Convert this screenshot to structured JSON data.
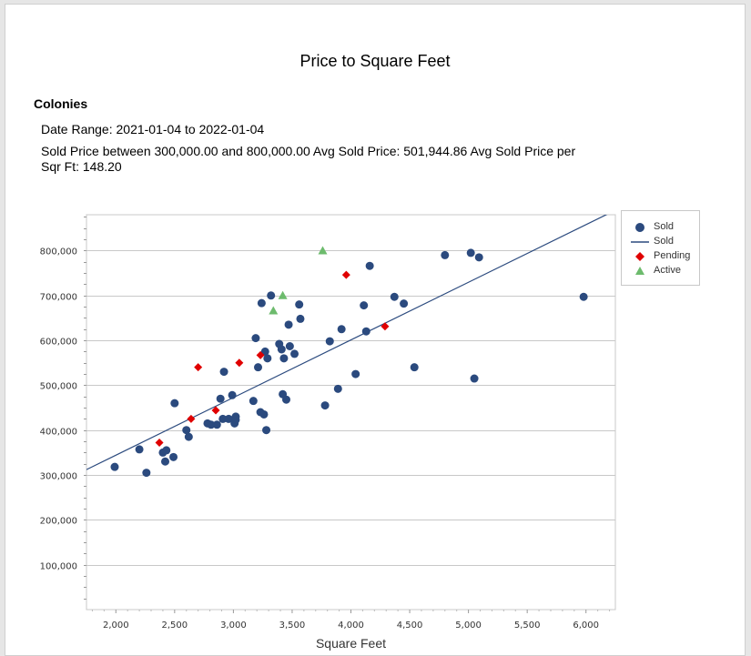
{
  "report": {
    "title": "Price to Square Feet",
    "section": "Colonies",
    "date_range": "Date Range: 2021-01-04 to 2022-01-04",
    "summary": "Sold Price between 300,000.00 and 800,000.00 Avg Sold Price: 501,944.86  Avg Sold Price per Sqr Ft: 148.20"
  },
  "colors": {
    "sold": "#2b4a7e",
    "pending": "#e00000",
    "active": "#6dbb6d",
    "trend": "#2b4a7e",
    "grid": "#c8c8c8"
  },
  "chart_data": {
    "type": "scatter",
    "title": "",
    "xlabel": "Square Feet",
    "ylabel": "",
    "xlim": [
      1750,
      6250
    ],
    "ylim": [
      0,
      880000
    ],
    "x_ticks": [
      2000,
      2500,
      3000,
      3500,
      4000,
      4500,
      5000,
      5500,
      6000
    ],
    "x_tick_labels": [
      "2,000",
      "2,500",
      "3,000",
      "3,500",
      "4,000",
      "4,500",
      "5,000",
      "5,500",
      "6,000"
    ],
    "y_ticks": [
      100000,
      200000,
      300000,
      400000,
      500000,
      600000,
      700000,
      800000
    ],
    "y_tick_labels": [
      "100,000",
      "200,000",
      "300,000",
      "400,000",
      "500,000",
      "600,000",
      "700,000",
      "800,000"
    ],
    "grid": "horizontal",
    "legend_position": "right",
    "series": [
      {
        "name": "Sold",
        "marker": "circle",
        "points": [
          [
            1990,
            318000
          ],
          [
            2200,
            357000
          ],
          [
            2260,
            305000
          ],
          [
            2400,
            350000
          ],
          [
            2420,
            330000
          ],
          [
            2430,
            355000
          ],
          [
            2490,
            340000
          ],
          [
            2500,
            460000
          ],
          [
            2600,
            400000
          ],
          [
            2620,
            385000
          ],
          [
            2780,
            415000
          ],
          [
            2810,
            412000
          ],
          [
            2860,
            412000
          ],
          [
            2890,
            470000
          ],
          [
            2910,
            425000
          ],
          [
            2920,
            530000
          ],
          [
            2960,
            425000
          ],
          [
            2990,
            478000
          ],
          [
            3010,
            415000
          ],
          [
            3020,
            430000
          ],
          [
            3020,
            423000
          ],
          [
            3170,
            465000
          ],
          [
            3190,
            605000
          ],
          [
            3210,
            540000
          ],
          [
            3230,
            440000
          ],
          [
            3240,
            683000
          ],
          [
            3260,
            435000
          ],
          [
            3270,
            575000
          ],
          [
            3280,
            400000
          ],
          [
            3290,
            560000
          ],
          [
            3320,
            700000
          ],
          [
            3390,
            592000
          ],
          [
            3410,
            580000
          ],
          [
            3420,
            480000
          ],
          [
            3430,
            560000
          ],
          [
            3450,
            468000
          ],
          [
            3470,
            635000
          ],
          [
            3480,
            587000
          ],
          [
            3520,
            570000
          ],
          [
            3560,
            680000
          ],
          [
            3570,
            648000
          ],
          [
            3780,
            455000
          ],
          [
            3820,
            598000
          ],
          [
            3890,
            492000
          ],
          [
            3920,
            625000
          ],
          [
            4040,
            525000
          ],
          [
            4110,
            678000
          ],
          [
            4130,
            620000
          ],
          [
            4160,
            766000
          ],
          [
            4370,
            697000
          ],
          [
            4450,
            682000
          ],
          [
            4540,
            540000
          ],
          [
            4800,
            790000
          ],
          [
            5020,
            795000
          ],
          [
            5050,
            515000
          ],
          [
            5090,
            785000
          ],
          [
            5980,
            697000
          ]
        ]
      },
      {
        "name": "Sold",
        "marker": "line",
        "points": [
          [
            1750,
            312000
          ],
          [
            6250,
            890000
          ]
        ]
      },
      {
        "name": "Pending",
        "marker": "diamond",
        "points": [
          [
            2370,
            372000
          ],
          [
            2640,
            425000
          ],
          [
            2700,
            540000
          ],
          [
            2850,
            444000
          ],
          [
            3050,
            550000
          ],
          [
            3230,
            567000
          ],
          [
            3960,
            746000
          ],
          [
            4290,
            631000
          ]
        ]
      },
      {
        "name": "Active",
        "marker": "triangle",
        "points": [
          [
            3760,
            800000
          ],
          [
            3420,
            700000
          ],
          [
            3340,
            666000
          ]
        ]
      }
    ]
  }
}
